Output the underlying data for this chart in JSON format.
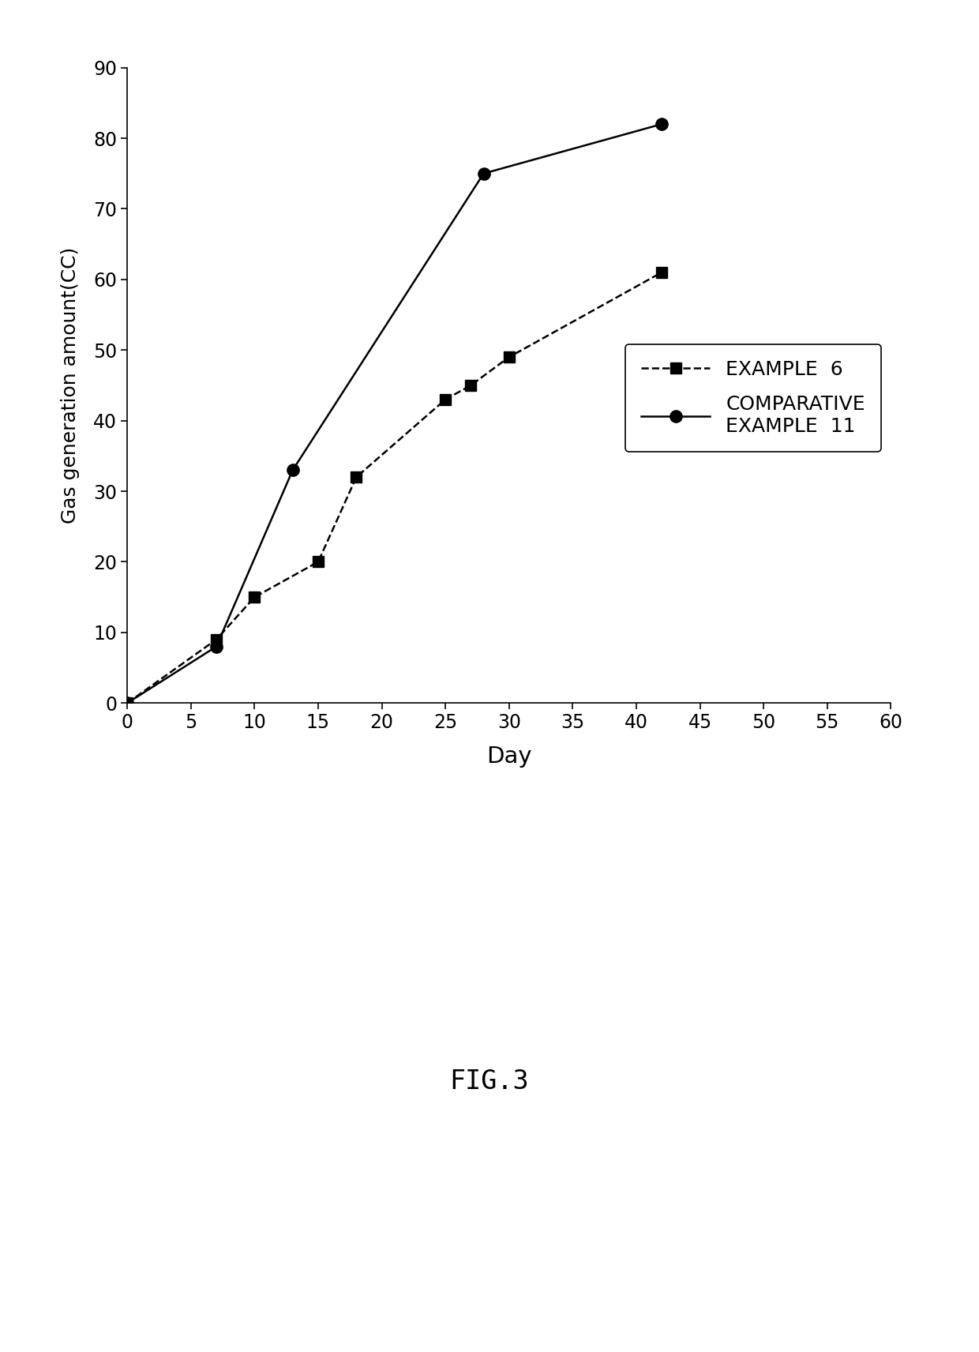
{
  "example6_x": [
    0,
    7,
    10,
    15,
    18,
    25,
    27,
    30,
    42
  ],
  "example6_y": [
    0,
    9,
    15,
    20,
    32,
    43,
    45,
    49,
    61
  ],
  "comp_example11_x": [
    0,
    7,
    13,
    28,
    42
  ],
  "comp_example11_y": [
    0,
    8,
    33,
    75,
    82
  ],
  "xlabel": "Day",
  "ylabel": "Gas generation amount(CC)",
  "xlim": [
    0,
    60
  ],
  "ylim": [
    0,
    90
  ],
  "xticks": [
    0,
    5,
    10,
    15,
    20,
    25,
    30,
    35,
    40,
    45,
    50,
    55,
    60
  ],
  "yticks": [
    0,
    10,
    20,
    30,
    40,
    50,
    60,
    70,
    80,
    90
  ],
  "legend_example6": "EXAMPLE  6",
  "legend_comp": "COMPARATIVE\nEXAMPLE  11",
  "figure_label": "FIG.3",
  "line_color": "#000000",
  "bg_color": "#ffffff"
}
